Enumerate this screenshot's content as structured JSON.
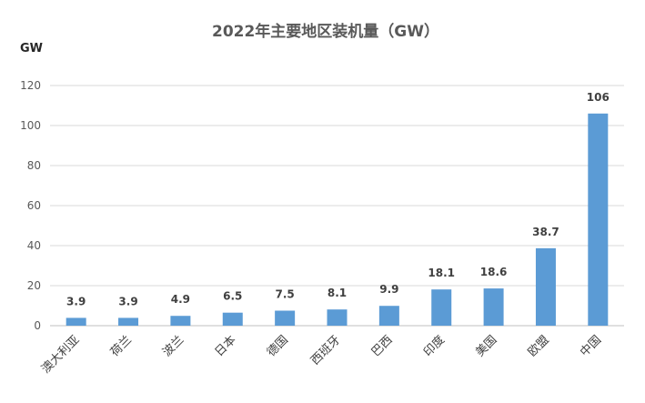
{
  "chart_data": {
    "type": "bar",
    "title": "2022年主要地区装机量（GW）",
    "unit_label": "GW",
    "categories": [
      "澳大利亚",
      "荷兰",
      "波兰",
      "日本",
      "德国",
      "西班牙",
      "巴西",
      "印度",
      "美国",
      "欧盟",
      "中国"
    ],
    "values": [
      3.9,
      3.9,
      4.9,
      6.5,
      7.5,
      8.1,
      9.9,
      18.1,
      18.6,
      38.7,
      106
    ],
    "ylim": [
      0,
      120
    ],
    "yticks": [
      0,
      20,
      40,
      60,
      80,
      100,
      120
    ],
    "grid": true,
    "bar_color": "#5b9bd5"
  }
}
